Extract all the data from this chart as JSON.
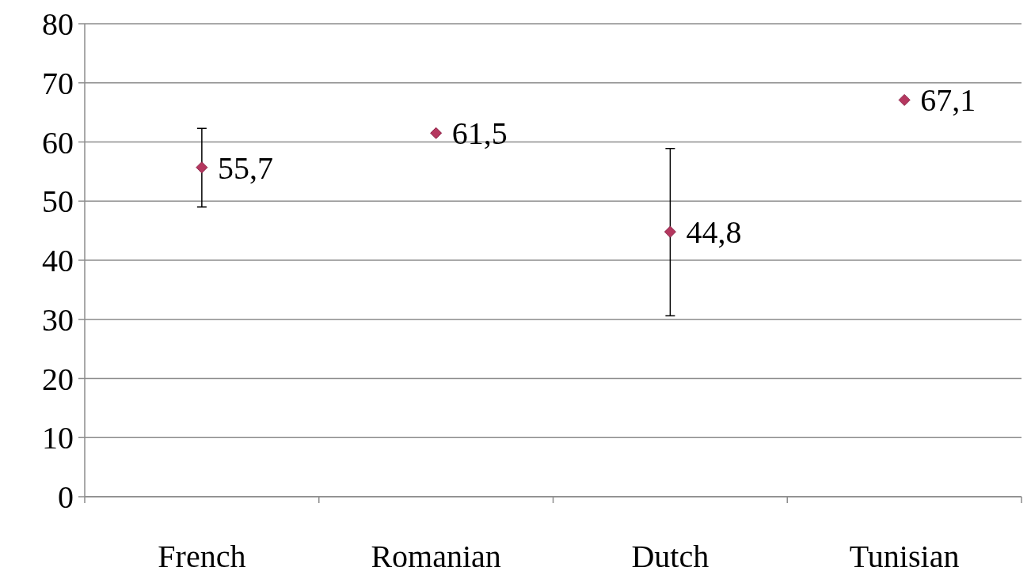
{
  "chart_data": {
    "type": "scatter",
    "categories": [
      "French",
      "Romanian",
      "Dutch",
      "Tunisian"
    ],
    "values": [
      55.7,
      61.5,
      44.8,
      67.1
    ],
    "errors": [
      [
        49.0,
        62.3
      ],
      null,
      [
        30.6,
        58.9
      ],
      null
    ],
    "value_labels": [
      "55,7",
      "61,5",
      "44,8",
      "67,1"
    ],
    "color": "#b5375f",
    "marker": "diamond",
    "ylim": [
      0,
      80
    ],
    "yticks": [
      0,
      10,
      20,
      30,
      40,
      50,
      60,
      70,
      80
    ],
    "grid": "y"
  }
}
